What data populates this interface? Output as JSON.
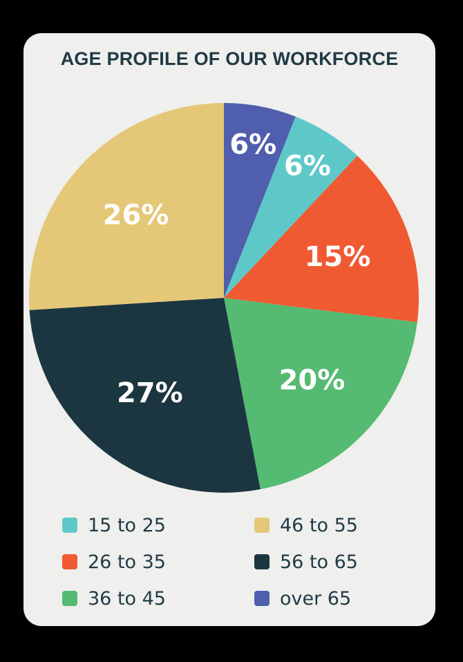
{
  "chart_data": {
    "type": "pie",
    "title": "AGE PROFILE OF OUR WORKFORCE",
    "slices": [
      {
        "label": "over 65",
        "value": 6,
        "display": "6%",
        "color": "#4f5fad"
      },
      {
        "label": "15 to 25",
        "value": 6,
        "display": "6%",
        "color": "#5ec8c9"
      },
      {
        "label": "26 to 35",
        "value": 15,
        "display": "15%",
        "color": "#f05a32"
      },
      {
        "label": "36 to 45",
        "value": 20,
        "display": "20%",
        "color": "#55bb72"
      },
      {
        "label": "56 to 65",
        "value": 27,
        "display": "27%",
        "color": "#1b3640"
      },
      {
        "label": "46 to 55",
        "value": 26,
        "display": "26%",
        "color": "#e4c878"
      }
    ],
    "legend": [
      {
        "label": "15 to 25",
        "color": "#5ec8c9"
      },
      {
        "label": "26 to 35",
        "color": "#f05a32"
      },
      {
        "label": "36 to 45",
        "color": "#55bb72"
      },
      {
        "label": "46 to 55",
        "color": "#e4c878"
      },
      {
        "label": "56 to 65",
        "color": "#1b3640"
      },
      {
        "label": "over 65",
        "color": "#4f5fad"
      }
    ],
    "legend_position": "bottom"
  }
}
